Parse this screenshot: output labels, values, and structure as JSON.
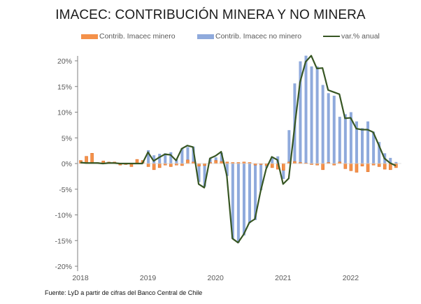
{
  "chart_data": {
    "type": "bar",
    "title": "IMACEC: CONTRIBUCIÓN MINERA Y NO MINERA",
    "xlabel": "",
    "ylabel": "",
    "ylim": [
      -20,
      20
    ],
    "y_ticks": [
      20,
      15,
      10,
      5,
      0,
      -5,
      -10,
      -15,
      -20
    ],
    "y_tick_labels": [
      "20%",
      "15%",
      "10%",
      "5%",
      "0%",
      "-5%",
      "-10%",
      "-15%",
      "-20%"
    ],
    "x_tick_labels": [
      "2018",
      "2019",
      "2020",
      "2021",
      "2022"
    ],
    "x_tick_months": [
      0,
      12,
      24,
      36,
      48
    ],
    "grid": false,
    "legend_position": "top",
    "colors": {
      "minero": "#F4914A",
      "minero_border": "#E0732A",
      "no_minero": "#8FAADC",
      "line": "#375623",
      "axis": "#7f7f7f"
    },
    "x": [
      "2018-01",
      "2018-02",
      "2018-03",
      "2018-04",
      "2018-05",
      "2018-06",
      "2018-07",
      "2018-08",
      "2018-09",
      "2018-10",
      "2018-11",
      "2018-12",
      "2019-01",
      "2019-02",
      "2019-03",
      "2019-04",
      "2019-05",
      "2019-06",
      "2019-07",
      "2019-08",
      "2019-09",
      "2019-10",
      "2019-11",
      "2019-12",
      "2020-01",
      "2020-02",
      "2020-03",
      "2020-04",
      "2020-05",
      "2020-06",
      "2020-07",
      "2020-08",
      "2020-09",
      "2020-10",
      "2020-11",
      "2020-12",
      "2021-01",
      "2021-02",
      "2021-03",
      "2021-04",
      "2021-05",
      "2021-06",
      "2021-07",
      "2021-08",
      "2021-09",
      "2021-10",
      "2021-11",
      "2021-12",
      "2022-01",
      "2022-02",
      "2022-03",
      "2022-04",
      "2022-05",
      "2022-06",
      "2022-07",
      "2022-08",
      "2022-09"
    ],
    "series": [
      {
        "name": "Contrib. Imacec minero",
        "kind": "bar",
        "values": [
          0.6,
          1.4,
          2.0,
          0.2,
          0.5,
          0.3,
          0.3,
          -0.3,
          -0.2,
          -0.6,
          0.8,
          0.6,
          -0.6,
          -1.2,
          -0.8,
          -0.3,
          -0.6,
          -0.3,
          -0.4,
          0.7,
          0.3,
          -0.5,
          -0.4,
          0.2,
          0.6,
          0.4,
          0.3,
          0.2,
          0.2,
          0.3,
          0.2,
          -0.3,
          -0.2,
          -0.4,
          -0.8,
          -1.1,
          -1.3,
          0.3,
          0.4,
          0.2,
          0.1,
          -0.2,
          -0.3,
          -1.2,
          0.2,
          -0.3,
          0.3,
          -1.0,
          -1.4,
          -1.7,
          -0.5,
          -1.6,
          -0.3,
          -0.6,
          -1.1,
          -1.2,
          -0.8
        ]
      },
      {
        "name": "Contrib. Imacec no minero",
        "kind": "bar",
        "values": [
          0.0,
          0.0,
          0.0,
          0.0,
          0.0,
          0.0,
          0.0,
          0.0,
          0.0,
          0.0,
          0.0,
          0.0,
          2.6,
          1.6,
          1.9,
          2.0,
          2.2,
          0.8,
          3.0,
          3.2,
          3.3,
          -3.6,
          -4.5,
          1.0,
          1.2,
          2.1,
          -2.4,
          -14.6,
          -15.4,
          -14.0,
          -11.6,
          -11.0,
          -5.2,
          -0.8,
          1.3,
          1.4,
          -3.0,
          6.5,
          15.6,
          19.9,
          21.0,
          18.9,
          18.9,
          15.3,
          13.7,
          13.2,
          9.1,
          9.6,
          10.0,
          8.2,
          6.9,
          8.2,
          6.2,
          4.2,
          2.0,
          1.1,
          0.3
        ]
      },
      {
        "name": "var.% anual",
        "kind": "line",
        "values": [
          0.2,
          0.1,
          0.1,
          0.1,
          0.0,
          0.1,
          0.1,
          0.0,
          0.0,
          0.0,
          0.0,
          0.0,
          2.2,
          0.5,
          1.2,
          1.8,
          1.7,
          0.6,
          2.9,
          3.5,
          3.2,
          -4.0,
          -4.7,
          1.0,
          1.5,
          2.3,
          -2.3,
          -14.6,
          -15.4,
          -13.8,
          -11.5,
          -10.8,
          -5.4,
          -1.0,
          1.3,
          0.7,
          -4.0,
          -2.9,
          6.7,
          15.8,
          19.8,
          21.0,
          18.5,
          18.6,
          14.3,
          13.9,
          13.5,
          8.8,
          8.9,
          6.8,
          6.6,
          6.6,
          6.1,
          3.6,
          1.0,
          0.1,
          -0.4
        ]
      }
    ]
  },
  "legend": {
    "items": [
      "Contrib. Imacec minero",
      "Contrib. Imacec no minero",
      "var.% anual"
    ]
  },
  "source_note": "Fuente: LyD a partir de cifras del Banco Central de Chile"
}
